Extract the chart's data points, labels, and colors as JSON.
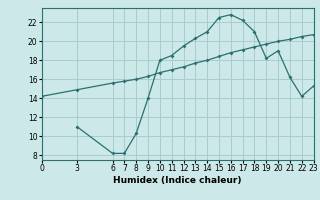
{
  "xlabel": "Humidex (Indice chaleur)",
  "bg_color": "#cce8e8",
  "grid_color": "#aacccc",
  "line_color": "#2a7070",
  "line1_x": [
    0,
    3,
    6,
    7,
    8,
    9,
    10,
    11,
    12,
    13,
    14,
    15,
    16,
    17,
    18,
    19,
    20,
    21,
    22,
    23
  ],
  "line1_y": [
    14.2,
    14.9,
    15.6,
    15.8,
    16.0,
    16.3,
    16.7,
    17.0,
    17.3,
    17.7,
    18.0,
    18.4,
    18.8,
    19.1,
    19.4,
    19.7,
    20.0,
    20.2,
    20.5,
    20.7
  ],
  "line2_x": [
    3,
    6,
    7,
    8,
    9,
    10,
    11,
    12,
    13,
    14,
    15,
    16,
    17,
    18,
    19,
    20,
    21,
    22,
    23
  ],
  "line2_y": [
    11.0,
    8.2,
    8.2,
    10.3,
    14.0,
    18.0,
    18.5,
    19.5,
    20.3,
    21.0,
    22.5,
    22.8,
    22.2,
    21.0,
    18.2,
    19.0,
    16.2,
    14.2,
    15.3
  ],
  "xlim": [
    0,
    23
  ],
  "ylim": [
    7.5,
    23.5
  ],
  "yticks": [
    8,
    10,
    12,
    14,
    16,
    18,
    20,
    22
  ],
  "xticks": [
    0,
    3,
    6,
    7,
    8,
    9,
    10,
    11,
    12,
    13,
    14,
    15,
    16,
    17,
    18,
    19,
    20,
    21,
    22,
    23
  ],
  "xlabel_fontsize": 6.5,
  "tick_fontsize": 5.5
}
